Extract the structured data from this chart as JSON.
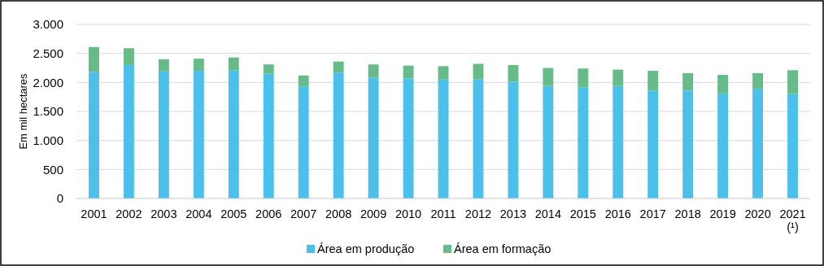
{
  "chart_data": {
    "type": "bar",
    "stacked": true,
    "ylabel": "Em mil hectares",
    "categories": [
      "2001",
      "2002",
      "2003",
      "2004",
      "2005",
      "2006",
      "2007",
      "2008",
      "2009",
      "2010",
      "2011",
      "2012",
      "2013",
      "2014",
      "2015",
      "2016",
      "2017",
      "2018",
      "2019",
      "2020",
      "2021\n(¹)"
    ],
    "series": [
      {
        "name": "Área em produção",
        "color": "#4bc0eb",
        "values": [
          2180,
          2300,
          2190,
          2200,
          2210,
          2150,
          1930,
          2170,
          2080,
          2070,
          2050,
          2050,
          2010,
          1940,
          1910,
          1940,
          1860,
          1860,
          1810,
          1890,
          1800
        ]
      },
      {
        "name": "Área em formação",
        "color": "#66bb88",
        "values": [
          430,
          290,
          210,
          210,
          220,
          160,
          190,
          190,
          230,
          220,
          230,
          270,
          290,
          310,
          330,
          280,
          340,
          300,
          320,
          270,
          410
        ]
      }
    ],
    "ylim": [
      0,
      3000
    ],
    "yticks": [
      0,
      {
        "value": 500,
        "label": "500"
      },
      {
        "value": 1000,
        "label": "1.000"
      },
      {
        "value": 1500,
        "label": "1.500"
      },
      {
        "value": 2000,
        "label": "2.000"
      },
      {
        "value": 2500,
        "label": "2.500"
      },
      {
        "value": 3000,
        "label": "3.000"
      }
    ],
    "grid": "y",
    "legend": "bottom"
  }
}
